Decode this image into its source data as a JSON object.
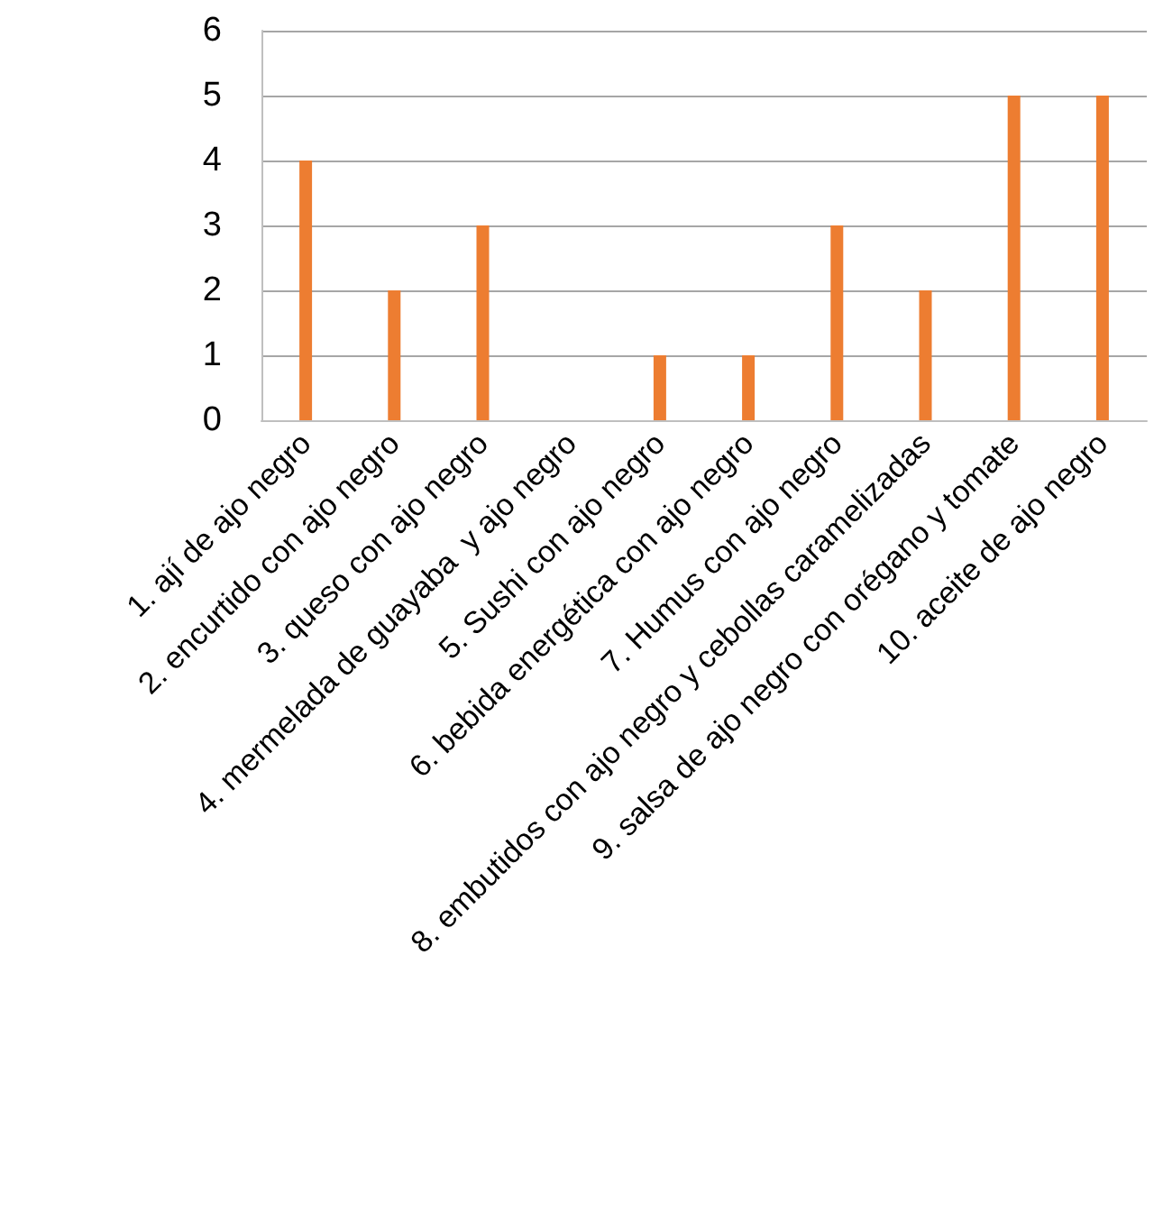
{
  "chart_data": {
    "type": "bar",
    "categories": [
      "1. ají de ajo negro",
      "2. encurtido con ajo negro",
      "3. queso con ajo negro",
      "4. mermelada de guayaba  y ajo negro",
      "5. Sushi con ajo negro",
      "6. bebida energética con ajo negro",
      "7. Humus con ajo negro",
      "8. embutidos con ajo negro y cebollas caramelizadas",
      "9. salsa de ajo negro con orégano y tomate",
      "10. aceite de ajo negro"
    ],
    "values": [
      4,
      2,
      3,
      0,
      1,
      1,
      3,
      2,
      5,
      5
    ],
    "color": "#ed7d31",
    "ylim": [
      0,
      6
    ],
    "yticks": [
      0,
      1,
      2,
      3,
      4,
      5,
      6
    ],
    "grid": "y"
  }
}
